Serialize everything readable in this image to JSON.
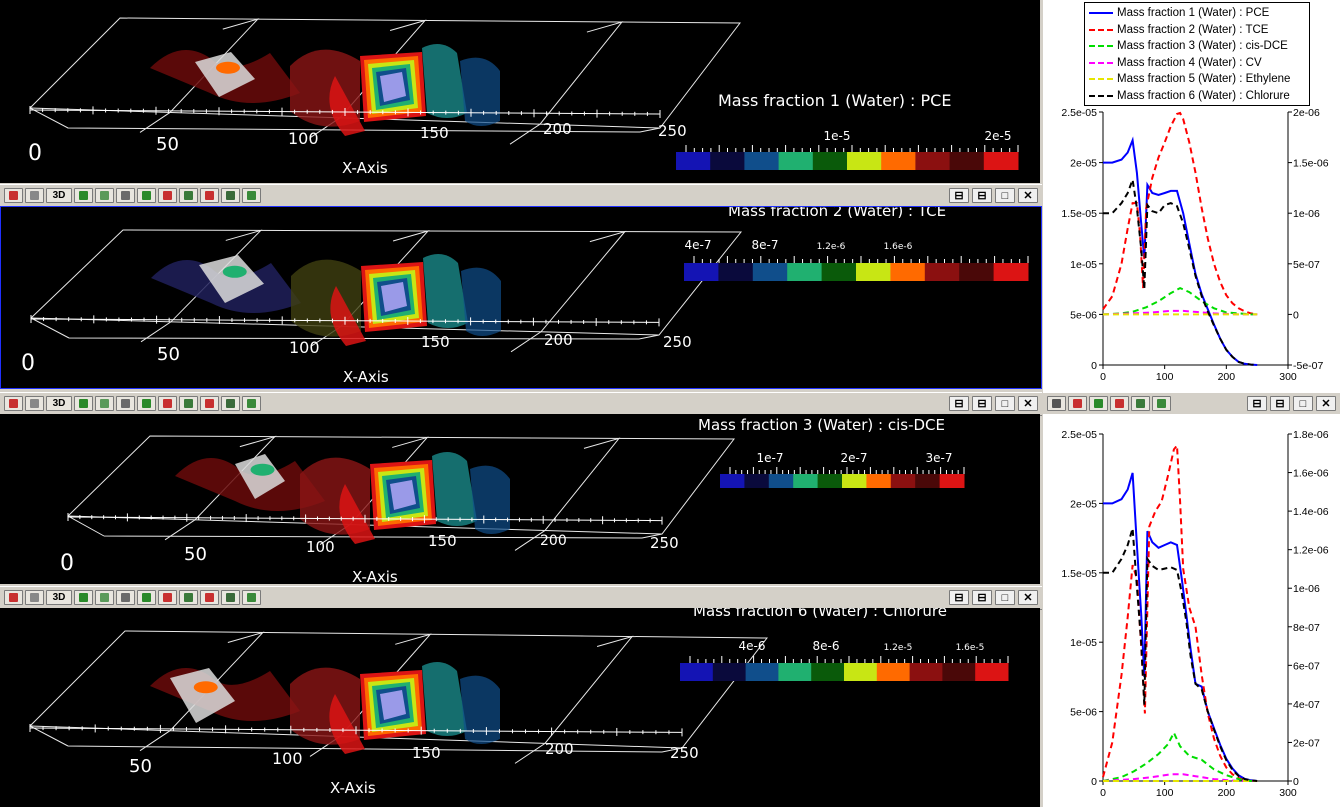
{
  "views": [
    {
      "title": "Mass fraction 1  (Water) : PCE",
      "colorbar_ticks": [
        "1e-5",
        "2e-5"
      ],
      "axis_ticks": [
        "0",
        "50",
        "100",
        "150",
        "200",
        "250"
      ],
      "axis_title": "X-Axis"
    },
    {
      "title": "Mass fraction 2  (Water) : TCE",
      "colorbar_ticks": [
        "4e-7",
        "8e-7",
        "1.2e-6",
        "1.6e-6"
      ],
      "axis_ticks": [
        "0",
        "50",
        "100",
        "150",
        "200",
        "250"
      ],
      "axis_title": "X-Axis"
    },
    {
      "title": "Mass fraction 3  (Water) : cis-DCE",
      "colorbar_ticks": [
        "1e-7",
        "2e-7",
        "3e-7"
      ],
      "axis_ticks": [
        "0",
        "50",
        "100",
        "150",
        "200",
        "250"
      ],
      "axis_title": "X-Axis"
    },
    {
      "title": "Mass fraction 6  (Water) : Chlorure",
      "colorbar_ticks": [
        "4e-6",
        "8e-6",
        "1.2e-5",
        "1.6e-5"
      ],
      "axis_ticks": [
        "50",
        "100",
        "150",
        "200",
        "250"
      ],
      "axis_title": "X-Axis"
    }
  ],
  "colormap": [
    "#1414b4",
    "#0a0a3c",
    "#104e8b",
    "#20b070",
    "#0a5a0a",
    "#c8e614",
    "#ff6a00",
    "#8b1010",
    "#4a0808",
    "#dc1414"
  ],
  "toolbar": {
    "mode_label": "3D",
    "buttons": [
      "⊟",
      "⊟",
      "□",
      "✕"
    ]
  },
  "legend": [
    {
      "label": "Mass fraction 1  (Water) : PCE",
      "color": "#0000ff",
      "style": "solid"
    },
    {
      "label": "Mass fraction 2  (Water) : TCE",
      "color": "#ff0000",
      "style": "dashed"
    },
    {
      "label": "Mass fraction 3  (Water) : cis-DCE",
      "color": "#00dd00",
      "style": "dashed"
    },
    {
      "label": "Mass fraction 4  (Water) : CV",
      "color": "#ff00ff",
      "style": "dashed"
    },
    {
      "label": "Mass fraction 5  (Water) : Ethylene",
      "color": "#e6e600",
      "style": "dashed"
    },
    {
      "label": "Mass fraction 6  (Water) : Chlorure",
      "color": "#000000",
      "style": "dashed"
    }
  ],
  "chart_data": [
    {
      "type": "line",
      "xlim": [
        0,
        300
      ],
      "x_ticks": [
        "0",
        "100",
        "200",
        "300"
      ],
      "y_left_ticks": [
        "0",
        "5e-06",
        "1e-05",
        "1.5e-05",
        "2e-05",
        "2.5e-05"
      ],
      "y_left_lim": [
        0,
        2.5e-05
      ],
      "y_right_ticks": [
        "-5e-07",
        "0",
        "5e-07",
        "1e-06",
        "1.5e-06",
        "2e-06"
      ],
      "y_right_lim": [
        -5e-07,
        2e-06
      ],
      "series": [
        {
          "name": "Mass fraction 1  (Water) : PCE",
          "axis": "left",
          "color": "#0000ff",
          "dash": false,
          "x": [
            0,
            15,
            30,
            40,
            48,
            55,
            62,
            67,
            72,
            80,
            90,
            100,
            110,
            120,
            130,
            140,
            150,
            160,
            170,
            180,
            190,
            200,
            210,
            220,
            230,
            240,
            250
          ],
          "y": [
            2e-05,
            2e-05,
            2.03e-05,
            2.1e-05,
            2.22e-05,
            1.9e-05,
            1.4e-05,
            1.05e-05,
            1.78e-05,
            1.7e-05,
            1.68e-05,
            1.7e-05,
            1.72e-05,
            1.72e-05,
            1.5e-05,
            1.2e-05,
            9e-06,
            7e-06,
            5.5e-06,
            4e-06,
            2.6e-06,
            1.5e-06,
            8e-07,
            3e-07,
            1.2e-07,
            4e-08,
            0
          ]
        },
        {
          "name": "Mass fraction 2  (Water) : TCE",
          "axis": "right",
          "color": "#ff0000",
          "dash": true,
          "x": [
            0,
            15,
            30,
            40,
            48,
            55,
            60,
            65,
            70,
            80,
            90,
            100,
            110,
            120,
            125,
            130,
            140,
            150,
            160,
            170,
            180,
            190,
            200,
            210,
            220,
            230,
            240,
            250
          ],
          "y": [
            5e-08,
            1.8e-07,
            5e-07,
            8.5e-07,
            1.1e-06,
            1.1e-06,
            8e-07,
            2.6e-07,
            1.05e-06,
            1.35e-06,
            1.55e-06,
            1.7e-06,
            1.86e-06,
            1.98e-06,
            1.99e-06,
            1.93e-06,
            1.7e-06,
            1.4e-06,
            1.05e-06,
            7.5e-07,
            5e-07,
            3.2e-07,
            1.9e-07,
            1.1e-07,
            6e-08,
            3e-08,
            1e-08,
            0
          ]
        },
        {
          "name": "Mass fraction 3  (Water) : cis-DCE",
          "axis": "right",
          "color": "#00dd00",
          "dash": true,
          "x": [
            0,
            30,
            50,
            70,
            90,
            110,
            125,
            140,
            160,
            180,
            200,
            220,
            240,
            250
          ],
          "y": [
            0,
            1e-08,
            3e-08,
            7e-08,
            1.3e-07,
            2.1e-07,
            2.6e-07,
            2.2e-07,
            1.3e-07,
            6e-08,
            2e-08,
            1e-08,
            0,
            0
          ]
        },
        {
          "name": "Mass fraction 4  (Water) : CV",
          "axis": "right",
          "color": "#ff00ff",
          "dash": true,
          "x": [
            0,
            50,
            80,
            110,
            130,
            150,
            180,
            220,
            250
          ],
          "y": [
            0,
            1e-08,
            2e-08,
            3.5e-08,
            3.5e-08,
            2.5e-08,
            1e-08,
            0,
            0
          ]
        },
        {
          "name": "Mass fraction 5  (Water) : Ethylene",
          "axis": "right",
          "color": "#e6e600",
          "dash": true,
          "x": [
            0,
            250
          ],
          "y": [
            0,
            0
          ]
        },
        {
          "name": "Mass fraction 6  (Water) : Chlorure",
          "axis": "left",
          "color": "#000000",
          "dash": true,
          "x": [
            0,
            15,
            30,
            40,
            48,
            55,
            62,
            67,
            72,
            80,
            90,
            100,
            110,
            120,
            130,
            140,
            150,
            160,
            170,
            180,
            190,
            200,
            210,
            220,
            230,
            240,
            250
          ],
          "y": [
            1.5e-05,
            1.5e-05,
            1.6e-05,
            1.7e-05,
            1.83e-05,
            1.55e-05,
            1.15e-05,
            7.5e-06,
            1.58e-05,
            1.52e-05,
            1.5e-05,
            1.58e-05,
            1.6e-05,
            1.57e-05,
            1.4e-05,
            1.15e-05,
            8.8e-06,
            6.8e-06,
            5.3e-06,
            3.9e-06,
            2.6e-06,
            1.5e-06,
            8e-07,
            3e-07,
            1.2e-07,
            4e-08,
            0
          ]
        }
      ]
    },
    {
      "type": "line",
      "xlim": [
        0,
        300
      ],
      "x_ticks": [
        "0",
        "100",
        "200",
        "300"
      ],
      "y_left_ticks": [
        "0",
        "5e-06",
        "1e-05",
        "1.5e-05",
        "2e-05",
        "2.5e-05"
      ],
      "y_left_lim": [
        0,
        2.5e-05
      ],
      "y_right_ticks": [
        "0",
        "2e-07",
        "4e-07",
        "6e-07",
        "8e-07",
        "1e-06",
        "1.2e-06",
        "1.4e-06",
        "1.6e-06",
        "1.8e-06"
      ],
      "y_right_lim": [
        0,
        1.8e-06
      ],
      "series": [
        {
          "name": "Mass fraction 1  (Water) : PCE",
          "axis": "left",
          "color": "#0000ff",
          "dash": false,
          "x": [
            0,
            15,
            30,
            40,
            48,
            55,
            62,
            67,
            72,
            80,
            90,
            100,
            110,
            120,
            128,
            135,
            142,
            150,
            160,
            170,
            180,
            190,
            200,
            210,
            220,
            230,
            240,
            250
          ],
          "y": [
            2e-05,
            2e-05,
            2.03e-05,
            2.1e-05,
            2.22e-05,
            1.7e-05,
            1.2e-05,
            7.5e-06,
            1.8e-05,
            1.72e-05,
            1.68e-05,
            1.7e-05,
            1.72e-05,
            1.7e-05,
            1.45e-05,
            1.2e-05,
            9.5e-06,
            7e-06,
            6.8e-06,
            5e-06,
            3.8e-06,
            2.6e-06,
            1.6e-06,
            9e-07,
            4e-07,
            1.5e-07,
            5e-08,
            0
          ]
        },
        {
          "name": "Mass fraction 2  (Water) : TCE",
          "axis": "right",
          "color": "#ff0000",
          "dash": true,
          "x": [
            0,
            15,
            30,
            40,
            48,
            55,
            62,
            68,
            75,
            85,
            95,
            105,
            115,
            120,
            125,
            130,
            140,
            150,
            160,
            170,
            180,
            190,
            200,
            210,
            220,
            230,
            240,
            250
          ],
          "y": [
            2e-08,
            2e-07,
            5.5e-07,
            8.5e-07,
            1.12e-06,
            1.05e-06,
            7e-07,
            3.5e-07,
            1.32e-06,
            1.4e-06,
            1.45e-06,
            1.58e-06,
            1.72e-06,
            1.74e-06,
            1.45e-06,
            1.1e-06,
            9e-07,
            8e-07,
            5.5e-07,
            3.5e-07,
            2.2e-07,
            1.3e-07,
            7e-08,
            3.5e-08,
            1.5e-08,
            5e-09,
            0,
            0
          ]
        },
        {
          "name": "Mass fraction 3  (Water) : cis-DCE",
          "axis": "right",
          "color": "#00dd00",
          "dash": true,
          "x": [
            0,
            30,
            50,
            70,
            90,
            105,
            115,
            125,
            140,
            160,
            180,
            200,
            220,
            240,
            250
          ],
          "y": [
            0,
            2e-08,
            5e-08,
            9e-08,
            1.4e-07,
            1.9e-07,
            2.5e-07,
            1.8e-07,
            1.3e-07,
            1.1e-07,
            6e-08,
            3e-08,
            1e-08,
            0,
            0
          ]
        },
        {
          "name": "Mass fraction 4  (Water) : CV",
          "axis": "right",
          "color": "#ff00ff",
          "dash": true,
          "x": [
            0,
            50,
            80,
            110,
            130,
            150,
            180,
            220,
            250
          ],
          "y": [
            0,
            1e-08,
            2e-08,
            3.5e-08,
            3.5e-08,
            2.5e-08,
            1e-08,
            0,
            0
          ]
        },
        {
          "name": "Mass fraction 5  (Water) : Ethylene",
          "axis": "right",
          "color": "#e6e600",
          "dash": true,
          "x": [
            0,
            250
          ],
          "y": [
            0,
            0
          ]
        },
        {
          "name": "Mass fraction 6  (Water) : Chlorure",
          "axis": "left",
          "color": "#000000",
          "dash": true,
          "x": [
            0,
            15,
            30,
            40,
            48,
            55,
            62,
            67,
            72,
            80,
            90,
            100,
            110,
            120,
            128,
            135,
            142,
            150,
            160,
            170,
            180,
            190,
            200,
            210,
            220,
            230,
            240,
            250
          ],
          "y": [
            1.5e-05,
            1.5e-05,
            1.6e-05,
            1.7e-05,
            1.82e-05,
            1.4e-05,
            1e-05,
            5.5e-06,
            1.6e-05,
            1.55e-05,
            1.52e-05,
            1.53e-05,
            1.54e-05,
            1.52e-05,
            1.35e-05,
            1.15e-05,
            9e-06,
            7e-06,
            6.6e-06,
            5e-06,
            3.7e-06,
            2.5e-06,
            1.5e-06,
            8e-07,
            3.5e-07,
            1.3e-07,
            4e-08,
            0
          ]
        }
      ]
    }
  ]
}
